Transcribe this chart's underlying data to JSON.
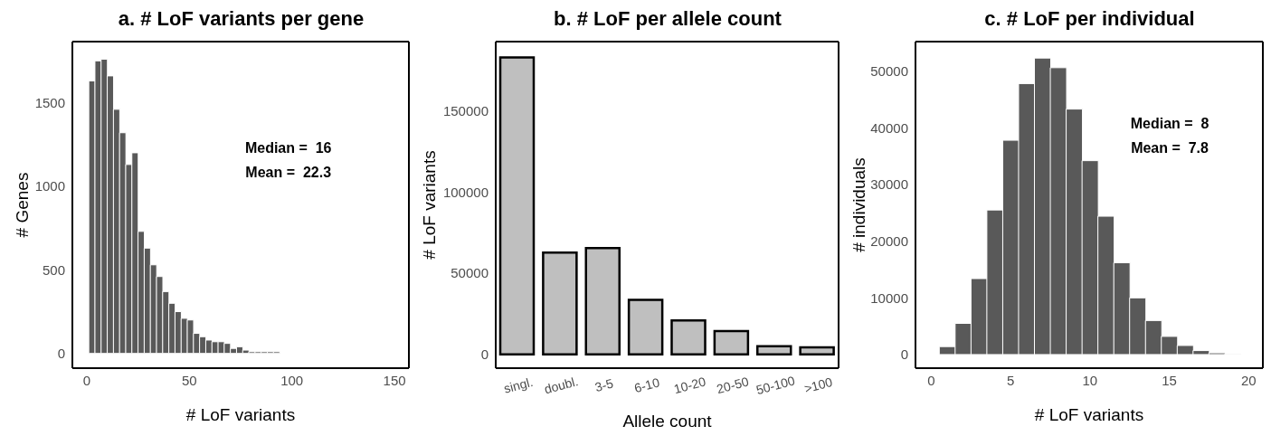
{
  "chart_data": [
    {
      "type": "histogram",
      "title": "a. # LoF variants per gene",
      "xlabel": "# LoF variants",
      "ylabel": "# Genes",
      "bins": [
        1,
        4,
        7,
        10,
        13,
        16,
        19,
        22,
        25,
        28,
        31,
        34,
        37,
        40,
        43,
        46,
        49,
        52,
        55,
        58,
        61,
        64,
        67,
        70,
        73,
        76,
        79,
        82,
        85,
        88,
        91,
        94,
        97,
        100,
        103,
        106,
        109,
        112,
        115,
        118,
        121,
        124
      ],
      "values": [
        1630,
        1750,
        1760,
        1660,
        1460,
        1320,
        1130,
        1200,
        730,
        630,
        530,
        460,
        370,
        300,
        250,
        210,
        200,
        120,
        100,
        80,
        70,
        70,
        60,
        30,
        40,
        20,
        10,
        10,
        10,
        10,
        10,
        0,
        0,
        0,
        0,
        0,
        0,
        0,
        0,
        0,
        0
      ],
      "color": "#595959",
      "xlim": [
        -7,
        157
      ],
      "ylim": [
        -88,
        1865
      ],
      "xticks": [
        0,
        50,
        100,
        150
      ],
      "yticks": [
        0,
        500,
        1000,
        1500
      ],
      "annotations": [
        "Median =  16",
        "Mean =  22.3"
      ]
    },
    {
      "type": "bar",
      "title": "b. # LoF per allele count",
      "xlabel": "Allele count",
      "ylabel": "# LoF variants",
      "categories": [
        "singl.",
        "doubl.",
        "3-5",
        "6-10",
        "10-20",
        "20-50",
        "50-100",
        ">100"
      ],
      "values": [
        182800,
        62600,
        65400,
        33500,
        20900,
        14400,
        5000,
        4300
      ],
      "color": "#bfbfbf",
      "ylim": [
        -8500,
        192600
      ],
      "yticks": [
        0,
        50000,
        100000,
        150000
      ]
    },
    {
      "type": "histogram",
      "title": "c. # LoF per individual",
      "xlabel": "# LoF variants",
      "ylabel": "# individuals",
      "bins": [
        0.5,
        1.5,
        2.5,
        3.5,
        4.5,
        5.5,
        6.5,
        7.5,
        8.5,
        9.5,
        10.5,
        11.5,
        12.5,
        13.5,
        14.5,
        15.5,
        16.5,
        17.5,
        18.5,
        19.5
      ],
      "values": [
        1400,
        5500,
        13400,
        25500,
        37800,
        47800,
        52300,
        50600,
        43300,
        34200,
        24400,
        16200,
        10000,
        6000,
        3200,
        1600,
        700,
        300,
        100
      ],
      "color": "#595959",
      "xlim": [
        -1,
        20.9
      ],
      "ylim": [
        -2400,
        55200
      ],
      "xticks": [
        0,
        5,
        10,
        15,
        20
      ],
      "yticks": [
        0,
        10000,
        20000,
        30000,
        40000,
        50000
      ],
      "annotations": [
        "Median =  8",
        "Mean =  7.8"
      ]
    }
  ]
}
